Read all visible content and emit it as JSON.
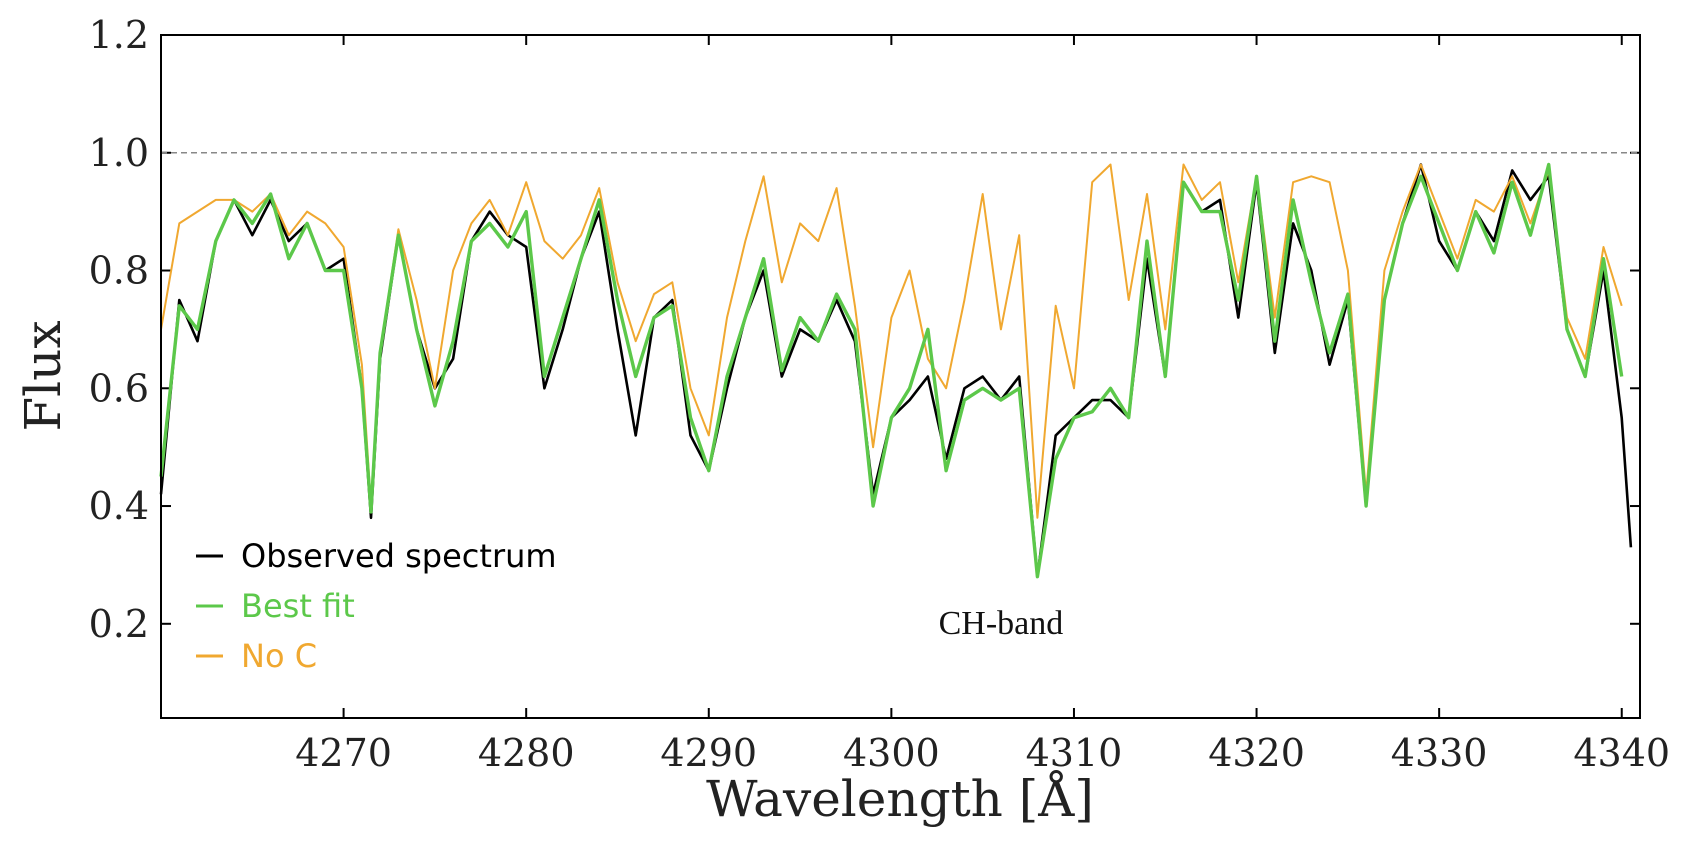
{
  "chart_data": {
    "type": "line",
    "xlabel": "Wavelength [Å]",
    "ylabel": "Flux",
    "annotation": {
      "text": "CH-band",
      "x": 4306,
      "y": 0.2
    },
    "hline": {
      "value": 1,
      "color": "#888888",
      "style": "dashed"
    },
    "legend": "lower left",
    "xlim": [
      4260,
      4341
    ],
    "xticks": [
      4270,
      4280,
      4290,
      4300,
      4310,
      4320,
      4330,
      4340
    ],
    "ylim": [
      0.04,
      1.2
    ],
    "yticks": [
      0.2,
      0.4,
      0.6,
      0.8,
      {
        "value": 1,
        "label": "1.0"
      },
      1.2
    ],
    "x": [
      4260,
      4261,
      4262,
      4263,
      4264,
      4265,
      4266,
      4267,
      4268,
      4269,
      4270,
      4271,
      4271.5,
      4272,
      4273,
      4274,
      4275,
      4276,
      4277,
      4278,
      4279,
      4280,
      4281,
      4282,
      4283,
      4284,
      4285,
      4286,
      4287,
      4288,
      4289,
      4290,
      4291,
      4292,
      4293,
      4294,
      4295,
      4296,
      4297,
      4298,
      4299,
      4300,
      4301,
      4302,
      4303,
      4304,
      4305,
      4306,
      4307,
      4308,
      4309,
      4310,
      4311,
      4312,
      4313,
      4314,
      4315,
      4316,
      4317,
      4318,
      4319,
      4320,
      4321,
      4322,
      4323,
      4324,
      4325,
      4326,
      4327,
      4328,
      4329,
      4330,
      4331,
      4332,
      4333,
      4334,
      4335,
      4336,
      4337,
      4338,
      4339,
      4340,
      4340.5
    ],
    "series": [
      {
        "name": "Observed spectrum",
        "color": "#000000",
        "values": [
          0.42,
          0.75,
          0.68,
          0.85,
          0.92,
          0.86,
          0.92,
          0.85,
          0.88,
          0.8,
          0.82,
          0.6,
          0.38,
          0.65,
          0.86,
          0.7,
          0.6,
          0.65,
          0.85,
          0.9,
          0.86,
          0.84,
          0.6,
          0.7,
          0.82,
          0.9,
          0.7,
          0.52,
          0.72,
          0.75,
          0.52,
          0.46,
          0.6,
          0.72,
          0.8,
          0.62,
          0.7,
          0.68,
          0.75,
          0.68,
          0.42,
          0.55,
          0.58,
          0.62,
          0.48,
          0.6,
          0.62,
          0.58,
          0.62,
          0.28,
          0.52,
          0.55,
          0.58,
          0.58,
          0.55,
          0.82,
          0.62,
          0.95,
          0.9,
          0.92,
          0.72,
          0.95,
          0.66,
          0.88,
          0.8,
          0.64,
          0.75,
          0.4,
          0.75,
          0.88,
          0.98,
          0.85,
          0.8,
          0.9,
          0.85,
          0.97,
          0.92,
          0.96,
          0.7,
          0.62,
          0.8,
          0.55,
          0.33
        ]
      },
      {
        "name": "Best fit",
        "color": "#5cc84a",
        "values": [
          0.45,
          0.74,
          0.7,
          0.85,
          0.92,
          0.88,
          0.93,
          0.82,
          0.88,
          0.8,
          0.8,
          0.6,
          0.39,
          0.66,
          0.86,
          0.7,
          0.57,
          0.68,
          0.85,
          0.88,
          0.84,
          0.9,
          0.62,
          0.72,
          0.82,
          0.92,
          0.75,
          0.62,
          0.72,
          0.74,
          0.55,
          0.46,
          0.62,
          0.72,
          0.82,
          0.63,
          0.72,
          0.68,
          0.76,
          0.7,
          0.4,
          0.55,
          0.6,
          0.7,
          0.46,
          0.58,
          0.6,
          0.58,
          0.6,
          0.28,
          0.48,
          0.55,
          0.56,
          0.6,
          0.55,
          0.85,
          0.62,
          0.95,
          0.9,
          0.9,
          0.75,
          0.96,
          0.68,
          0.92,
          0.78,
          0.66,
          0.76,
          0.4,
          0.75,
          0.88,
          0.96,
          0.88,
          0.8,
          0.9,
          0.83,
          0.95,
          0.86,
          0.98,
          0.7,
          0.62,
          0.82,
          0.62,
          null
        ]
      },
      {
        "name": "No C",
        "color": "#f0a830",
        "values": [
          0.7,
          0.88,
          0.9,
          0.92,
          0.92,
          0.9,
          0.93,
          0.86,
          0.9,
          0.88,
          0.84,
          0.64,
          0.4,
          0.66,
          0.87,
          0.75,
          0.6,
          0.8,
          0.88,
          0.92,
          0.86,
          0.95,
          0.85,
          0.82,
          0.86,
          0.94,
          0.78,
          0.68,
          0.76,
          0.78,
          0.6,
          0.52,
          0.72,
          0.85,
          0.96,
          0.78,
          0.88,
          0.85,
          0.94,
          0.74,
          0.5,
          0.72,
          0.8,
          0.65,
          0.6,
          0.75,
          0.93,
          0.7,
          0.86,
          0.38,
          0.74,
          0.6,
          0.95,
          0.98,
          0.75,
          0.93,
          0.7,
          0.98,
          0.92,
          0.95,
          0.78,
          0.96,
          0.72,
          0.95,
          0.96,
          0.95,
          0.8,
          0.42,
          0.8,
          0.9,
          0.98,
          0.9,
          0.82,
          0.92,
          0.9,
          0.96,
          0.88,
          0.97,
          0.72,
          0.65,
          0.84,
          0.74,
          null
        ]
      }
    ]
  }
}
